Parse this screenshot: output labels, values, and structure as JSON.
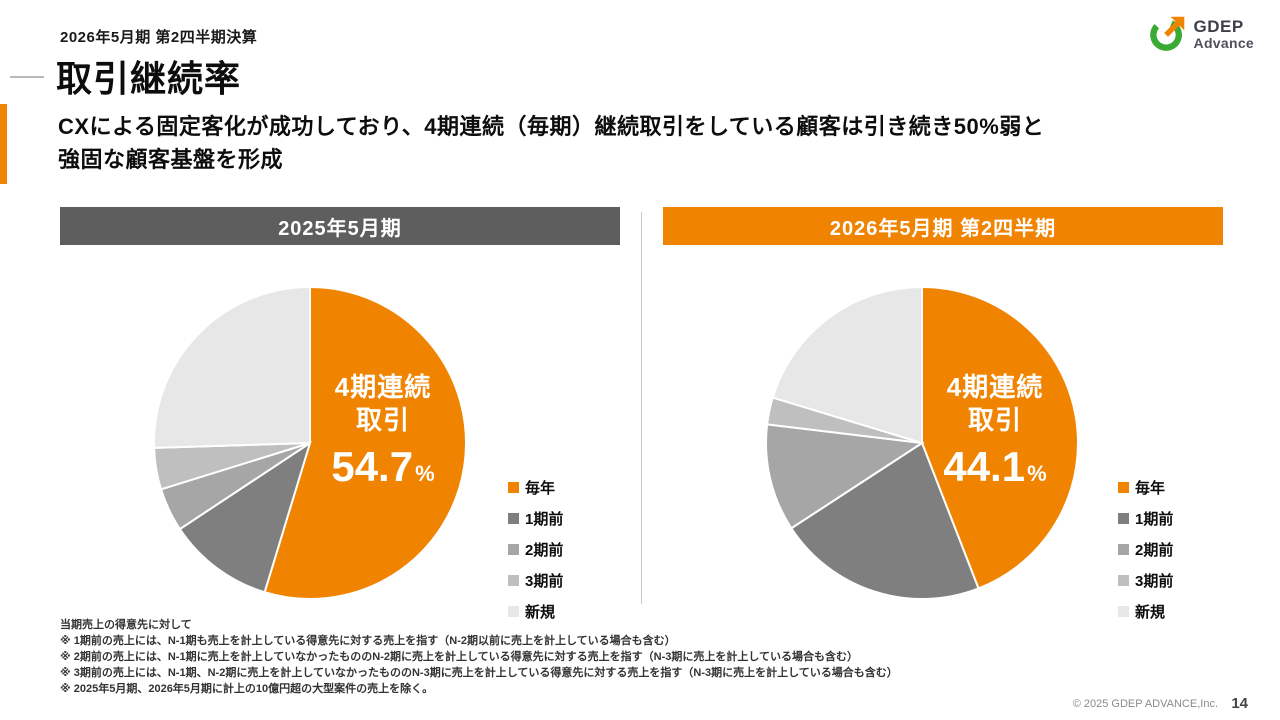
{
  "slide": {
    "eyebrow": "2026年5月期 第2四半期決算",
    "title": "取引継続率",
    "subtitle_line1": "CXによる固定客化が成功しており、4期連続（毎期）継続取引をしている顧客は引き続き50%弱と",
    "subtitle_line2": "強固な顧客基盤を形成",
    "copyright": "© 2025 GDEP ADVANCE,Inc.",
    "page_number": "14"
  },
  "logo": {
    "text_top": "GDEP",
    "text_bottom": "Advance",
    "mark_green": "#3BAA34",
    "mark_orange": "#F08300"
  },
  "colors": {
    "accent_orange": "#F08300",
    "header_gray": "#5E5E5E",
    "divider_gray": "#C9C9C9"
  },
  "chart_data": [
    {
      "type": "pie",
      "title": "2025年5月期",
      "center_label": [
        "4期連続",
        "取引"
      ],
      "center_value": "54.7",
      "center_unit": "%",
      "categories": [
        "毎年",
        "1期前",
        "2期前",
        "3期前",
        "新規"
      ],
      "values": [
        54.7,
        11.0,
        4.5,
        4.3,
        25.5
      ],
      "colors": [
        "#F08300",
        "#7F7F7F",
        "#A6A6A6",
        "#BFBFBF",
        "#E8E7E7"
      ],
      "legend_position": "right",
      "start_angle": "top",
      "direction": "clockwise"
    },
    {
      "type": "pie",
      "title": "2026年5月期 第2四半期",
      "center_label": [
        "4期連続",
        "取引"
      ],
      "center_value": "44.1",
      "center_unit": "%",
      "categories": [
        "毎年",
        "1期前",
        "2期前",
        "3期前",
        "新規"
      ],
      "values": [
        44.1,
        21.7,
        11.1,
        2.8,
        20.3
      ],
      "colors": [
        "#F08300",
        "#7F7F7F",
        "#A6A6A6",
        "#BFBFBF",
        "#E8E7E7"
      ],
      "legend_position": "right",
      "start_angle": "top",
      "direction": "clockwise"
    }
  ],
  "footnotes": [
    "当期売上の得意先に対して",
    "※ 1期前の売上には、N-1期も売上を計上している得意先に対する売上を指す（N-2期以前に売上を計上している場合も含む）",
    "※ 2期前の売上には、N-1期に売上を計上していなかったもののN-2期に売上を計上している得意先に対する売上を指す（N-3期に売上を計上している場合も含む）",
    "※ 3期前の売上には、N-1期、N-2期に売上を計上していなかったもののN-3期に売上を計上している得意先に対する売上を指す（N-3期に売上を計上している場合も含む）",
    "※ 2025年5月期、2026年5月期に計上の10億円超の大型案件の売上を除く。"
  ]
}
